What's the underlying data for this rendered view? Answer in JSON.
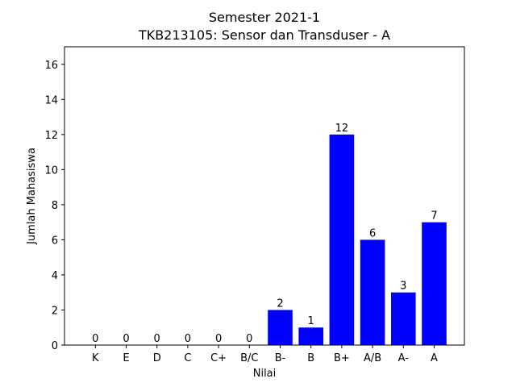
{
  "chart_data": {
    "type": "bar",
    "title": "Semester 2021-1",
    "subtitle": "TKB213105: Sensor dan Transduser - A",
    "xlabel": "Nilai",
    "ylabel": "Jumlah Mahasiswa",
    "categories": [
      "K",
      "E",
      "D",
      "C",
      "C+",
      "B/C",
      "B-",
      "B",
      "B+",
      "A/B",
      "A-",
      "A"
    ],
    "values": [
      0,
      0,
      0,
      0,
      0,
      0,
      2,
      1,
      12,
      6,
      3,
      7
    ],
    "ylim": [
      0,
      17
    ],
    "yticks": [
      0,
      2,
      4,
      6,
      8,
      10,
      12,
      14,
      16
    ],
    "bar_color": "#0000ff",
    "grid": false,
    "legend": false
  }
}
